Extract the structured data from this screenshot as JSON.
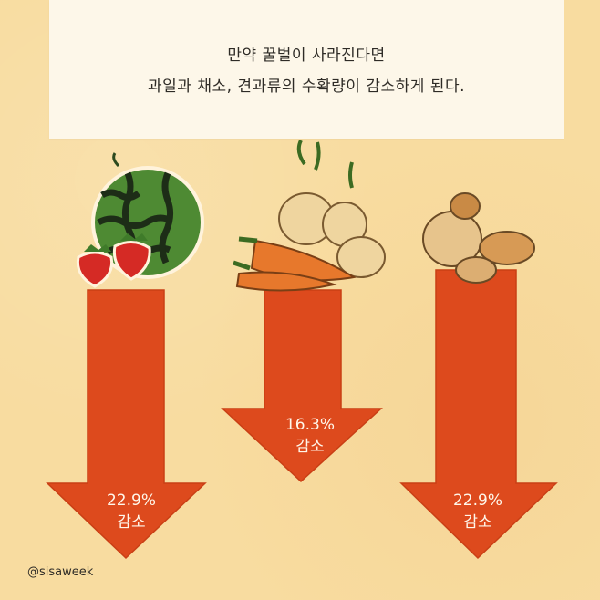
{
  "title": {
    "line1": "만약 꿀벌이 사라진다면",
    "line2": "과일과 채소, 견과류의 수확량이 감소하게 된다."
  },
  "arrows": [
    {
      "category": "fruit",
      "percent": "22.9%",
      "label": "감소"
    },
    {
      "category": "vegetable",
      "percent": "16.3%",
      "label": "감소"
    },
    {
      "category": "nut",
      "percent": "22.9%",
      "label": "감소"
    }
  ],
  "credit": "@sisaweek",
  "colors": {
    "background": "#f8dca0",
    "card": "#fdf7e9",
    "arrow": "#dd4a1d",
    "text": "#2e2b26",
    "label": "#fff7ea"
  }
}
